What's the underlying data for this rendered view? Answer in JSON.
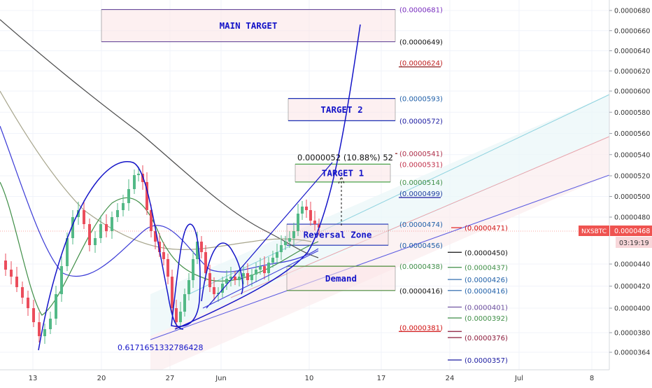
{
  "chart_data": {
    "type": "candlestick",
    "symbol": "NXSBTC",
    "colors": {
      "up": "#53b987",
      "down": "#eb4d5c",
      "ma_black": "#4a4a4a",
      "ma_olive": "#a7a58c",
      "ma_green": "#3f8e47",
      "ma_blue": "#3a3ad6",
      "drawing_blue": "#1414c8",
      "last_price": "#ef5350",
      "zone_fill": "#fbe4e6"
    },
    "y_axis": {
      "ticks": [
        "0.0000680",
        "0.0000660",
        "0.0000640",
        "0.0000620",
        "0.0000600",
        "0.0000580",
        "0.0000560",
        "0.0000540",
        "0.0000520",
        "0.0000500",
        "0.0000480",
        "0.0000440",
        "0.0000420",
        "0.0000400",
        "0.0000380",
        "0.0000364"
      ],
      "min": 3.55e-05,
      "max": 6.9e-05
    },
    "x_axis": {
      "ticks": [
        "13",
        "20",
        "27",
        "Jun",
        "10",
        "17",
        "24",
        "Jul",
        "8"
      ]
    },
    "last_price": {
      "label": "NXSBTC",
      "value": "0.0000468",
      "countdown": "03:19:19"
    },
    "zones": [
      {
        "label": "MAIN TARGET",
        "top": 6.81e-05,
        "bottom": 6.49e-05,
        "top_label": "(0.0000681)",
        "bottom_label": "(0.0000649)"
      },
      {
        "label": "TARGET 2",
        "top": 5.93e-05,
        "bottom": 5.72e-05,
        "top_label": "(0.0000593)",
        "bottom_label": "(0.0000572)"
      },
      {
        "label": "TARGET 1",
        "top": 5.31e-05,
        "bottom": 5.14e-05,
        "top_label": "(0.0000531)",
        "bottom_label": "(0.0000514)"
      },
      {
        "label": "Reversal Zone",
        "top": 4.74e-05,
        "bottom": 4.56e-05,
        "top_label": "(0.0000474)",
        "bottom_label": "(0.0000456)"
      },
      {
        "label": "Demand",
        "top": 4.38e-05,
        "bottom": 4.16e-05,
        "top_label": "(0.0000438)",
        "bottom_label": "(0.0000416)"
      }
    ],
    "level_labels": [
      {
        "value": 6.24e-05,
        "label": "(0.0000624)"
      },
      {
        "value": 5.41e-05,
        "label": "(0.0000541)"
      },
      {
        "value": 4.99e-05,
        "label": "(0.0000499)"
      },
      {
        "value": 4.71e-05,
        "label": "(0.0000471)"
      },
      {
        "value": 4.5e-05,
        "label": "(0.0000450)"
      },
      {
        "value": 4.37e-05,
        "label": "(0.0000437)"
      },
      {
        "value": 4.26e-05,
        "label": "(0.0000426)"
      },
      {
        "value": 4.16e-05,
        "label": "(0.0000416)"
      },
      {
        "value": 4.01e-05,
        "label": "(0.0000401)"
      },
      {
        "value": 3.92e-05,
        "label": "(0.0000392)"
      },
      {
        "value": 3.81e-05,
        "label": "(0.0000381)"
      },
      {
        "value": 3.76e-05,
        "label": "(0.0000376)"
      },
      {
        "value": 3.57e-05,
        "label": "(0.0000357)"
      }
    ],
    "annotations": {
      "measure": "0.0000052 (10.88%) 52",
      "fib_value": "0.6171651332786428"
    }
  }
}
